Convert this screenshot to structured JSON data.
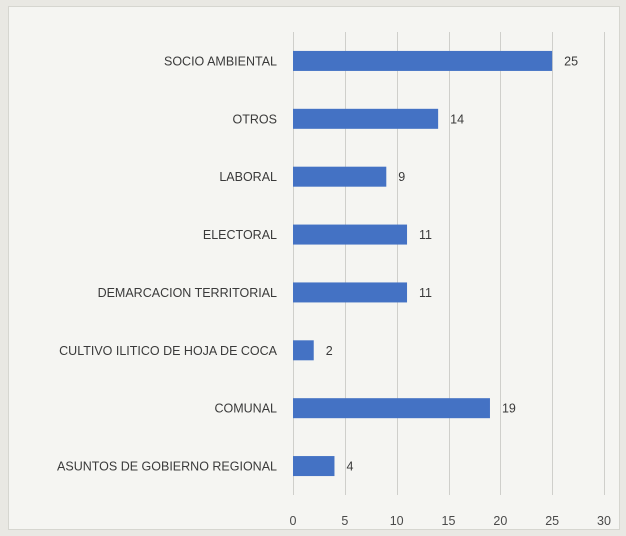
{
  "chart_data": {
    "type": "bar",
    "orientation": "horizontal",
    "categories": [
      "SOCIO AMBIENTAL",
      "OTROS",
      "LABORAL",
      "ELECTORAL",
      "DEMARCACION TERRITORIAL",
      "CULTIVO ILITICO DE HOJA DE COCA",
      "COMUNAL",
      "ASUNTOS DE GOBIERNO REGIONAL"
    ],
    "values": [
      25,
      14,
      9,
      11,
      11,
      2,
      19,
      4
    ],
    "xlim": [
      0,
      30
    ],
    "xticks": [
      0,
      5,
      10,
      15,
      20,
      25,
      30
    ],
    "grid": "vertical",
    "bar_color": "#4472c4",
    "title": "",
    "xlabel": "",
    "ylabel": ""
  }
}
